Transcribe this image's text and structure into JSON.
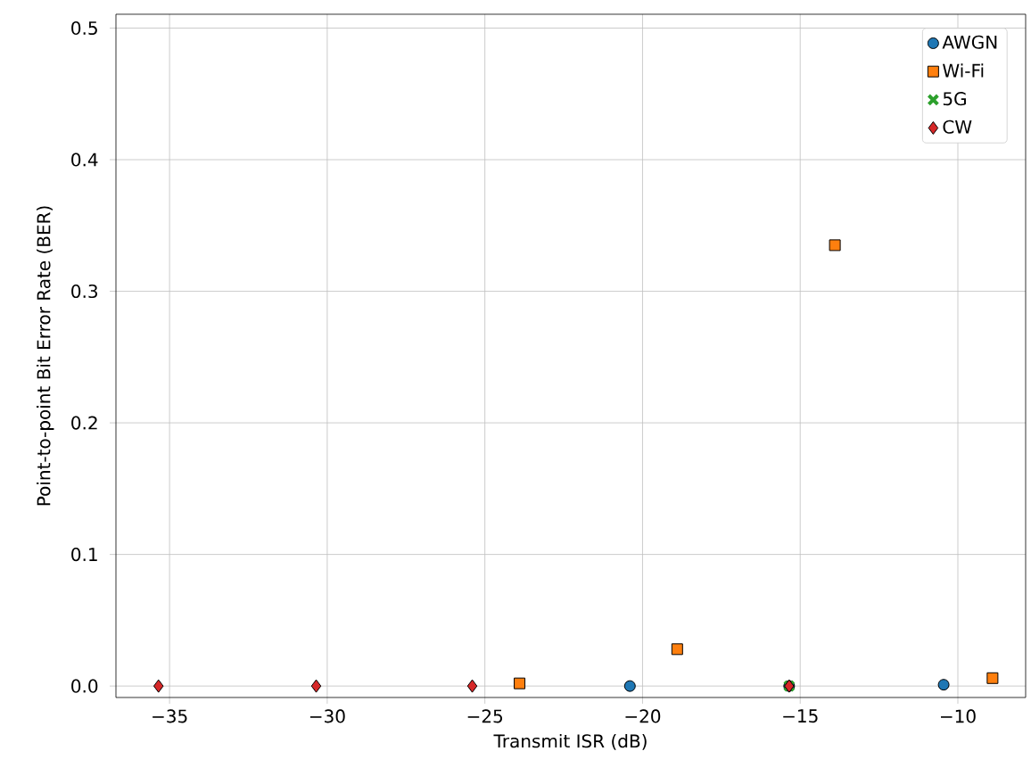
{
  "chart_data": {
    "type": "scatter",
    "xlabel": "Transmit ISR (dB)",
    "ylabel": "Point-to-point Bit Error Rate (BER)",
    "xlim": [
      -36.7,
      -7.85
    ],
    "ylim": [
      -0.0087,
      0.5105
    ],
    "xticks": [
      {
        "value": -35,
        "label": "−35"
      },
      {
        "value": -30,
        "label": "−30"
      },
      {
        "value": -25,
        "label": "−25"
      },
      {
        "value": -20,
        "label": "−20"
      },
      {
        "value": -15,
        "label": "−15"
      },
      {
        "value": -10,
        "label": "−10"
      }
    ],
    "yticks": [
      {
        "value": 0,
        "label": "0.0"
      },
      0.1,
      0.2,
      0.3,
      0.4,
      0.5
    ],
    "grid": true,
    "legend": "top right",
    "series": [
      {
        "name": "AWGN",
        "color": "#1f77b4",
        "marker": "circle",
        "x": [
          -20.4,
          -15.35,
          -10.45
        ],
        "values": [
          0,
          0,
          0.001
        ]
      },
      {
        "name": "Wi-Fi",
        "color": "#ff7f0e",
        "marker": "square",
        "x": [
          -23.9,
          -18.9,
          -13.9,
          -8.9
        ],
        "values": [
          0.002,
          0.028,
          0.335,
          0.006
        ]
      },
      {
        "name": "5G",
        "color": "#2ca02c",
        "marker": "cross",
        "x": [
          -15.35
        ],
        "values": [
          0
        ]
      },
      {
        "name": "CW",
        "color": "#d62728",
        "marker": "diamond",
        "x": [
          -35.35,
          -30.35,
          -25.4,
          -15.35
        ],
        "values": [
          0,
          0,
          0,
          0
        ]
      }
    ]
  }
}
